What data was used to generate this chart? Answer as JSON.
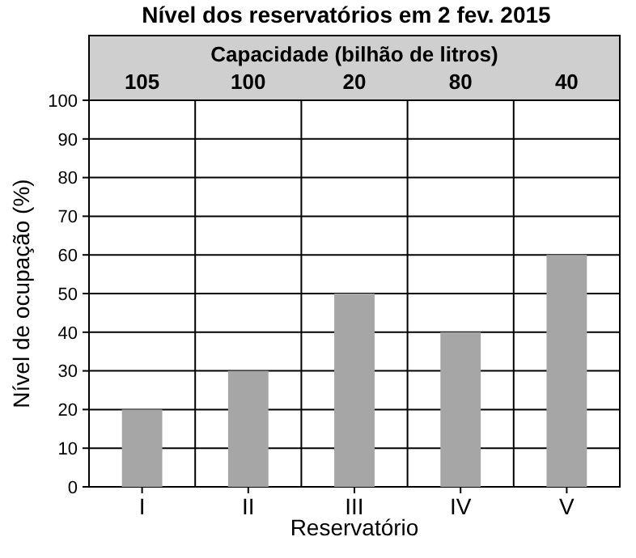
{
  "chart_data": {
    "type": "bar",
    "title": "Nível dos reservatórios em 2 fev. 2015",
    "x2label": "Capacidade (bilhão de litros)",
    "xlabel": "Reservatório",
    "ylabel": "Nível de ocupação (%)",
    "categories": [
      "I",
      "II",
      "III",
      "IV",
      "V"
    ],
    "values": [
      20,
      30,
      50,
      40,
      60
    ],
    "color": "#a6a6a6",
    "ylim": [
      0,
      100
    ],
    "yticks": [
      0,
      10,
      20,
      30,
      40,
      50,
      60,
      70,
      80,
      90,
      100
    ],
    "grid": true,
    "annotations": [
      "105",
      "100",
      "20",
      "80",
      "40"
    ]
  }
}
